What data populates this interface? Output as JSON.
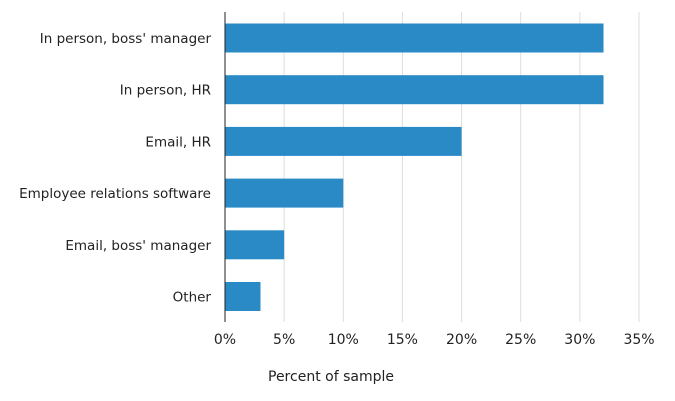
{
  "chart_data": {
    "type": "bar",
    "orientation": "horizontal",
    "title": "",
    "xlabel": "Percent of sample",
    "ylabel": "",
    "categories": [
      "In person, boss' manager",
      "In person, HR",
      "Email, HR",
      "Employee relations software",
      "Email, boss' manager",
      "Other"
    ],
    "values": [
      32,
      32,
      20,
      10,
      5,
      3
    ],
    "xlim": [
      0,
      35
    ],
    "xticks": [
      0,
      5,
      10,
      15,
      20,
      25,
      30,
      35
    ],
    "xtick_labels": [
      "0%",
      "5%",
      "10%",
      "15%",
      "20%",
      "25%",
      "30%",
      "35%"
    ],
    "grid": true,
    "bar_color": "#2a8ac6",
    "grid_color": "#dddddd",
    "axis_color": "#222222"
  }
}
